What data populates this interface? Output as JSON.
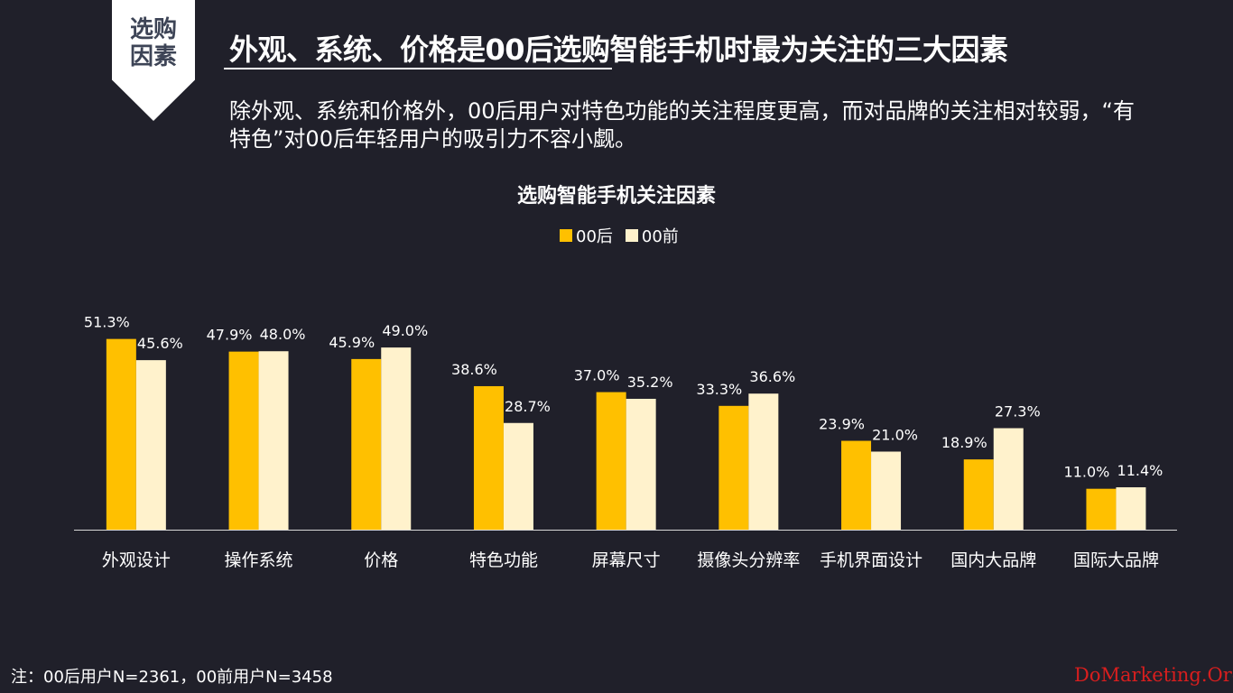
{
  "header": {
    "ribbon_line1": "选购",
    "ribbon_line2": "因素",
    "title": "外观、系统、价格是00后选购智能手机时最为关注的三大因素",
    "subtitle": "除外观、系统和价格外，00后用户对特色功能的关注程度更高，而对品牌的关注相对较弱，“有特色”对00后年轻用户的吸引力不容小觑。"
  },
  "chart_data": {
    "type": "bar",
    "title": "选购智能手机关注因素",
    "categories": [
      "外观设计",
      "操作系统",
      "价格",
      "特色功能",
      "屏幕尺寸",
      "摄像头分辨率",
      "手机界面设计",
      "国内大品牌",
      "国际大品牌"
    ],
    "series": [
      {
        "name": "00后",
        "color": "#ffc000",
        "values": [
          51.3,
          47.9,
          45.9,
          38.6,
          37.0,
          33.3,
          23.9,
          18.9,
          11.0
        ]
      },
      {
        "name": "00前",
        "color": "#fff2cc",
        "values": [
          45.6,
          48.0,
          49.0,
          28.7,
          35.2,
          36.6,
          21.0,
          27.3,
          11.4
        ]
      }
    ],
    "value_suffix": "%",
    "ylim": [
      0,
      60
    ],
    "legend_position": "top-center",
    "grid": false
  },
  "footer": {
    "note": "注：00后用户N=2361，00前用户N=3458",
    "watermark": "DoMarketing.Org"
  }
}
